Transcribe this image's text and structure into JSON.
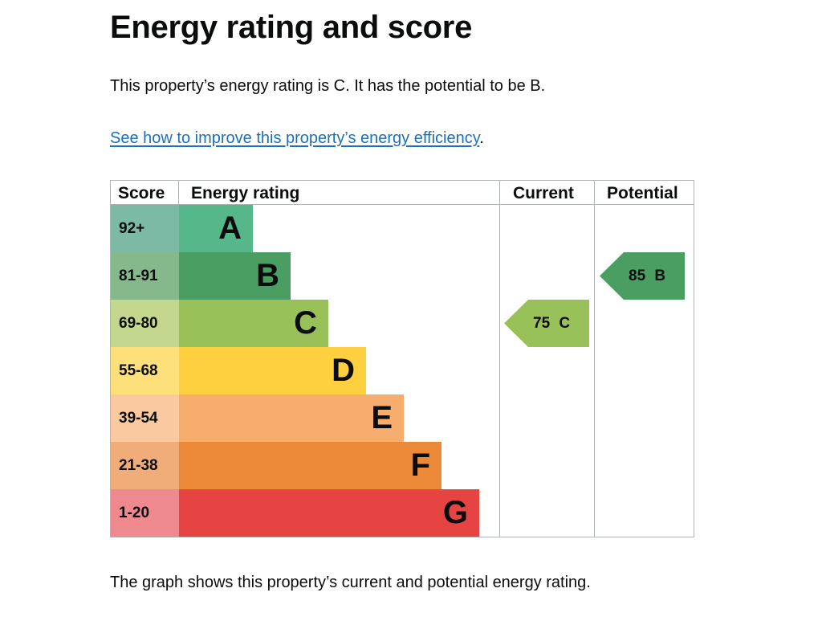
{
  "title": "Energy rating and score",
  "summary": "This property’s energy rating is C. It has the potential to be B.",
  "improve_link": "See how to improve this property’s energy efficiency",
  "improve_suffix": ".",
  "graph": {
    "headers": {
      "score": "Score",
      "rating": "Energy rating",
      "current": "Current",
      "potential": "Potential"
    },
    "bands": [
      {
        "score": "92+",
        "letter": "A",
        "bar_color": "#55b78a",
        "score_color": "#7cbaa6"
      },
      {
        "score": "81-91",
        "letter": "B",
        "bar_color": "#4a9e62",
        "score_color": "#85b98c"
      },
      {
        "score": "69-80",
        "letter": "C",
        "bar_color": "#98c159",
        "score_color": "#c4d78e"
      },
      {
        "score": "55-68",
        "letter": "D",
        "bar_color": "#fed03f",
        "score_color": "#fee07b"
      },
      {
        "score": "39-54",
        "letter": "E",
        "bar_color": "#f6ad6e",
        "score_color": "#f9c9a0"
      },
      {
        "score": "21-38",
        "letter": "F",
        "bar_color": "#ec8a3a",
        "score_color": "#f0ad7a"
      },
      {
        "score": "1-20",
        "letter": "G",
        "bar_color": "#e64343",
        "score_color": "#ee8a8f"
      }
    ],
    "current": {
      "label": "75 C",
      "score": 75,
      "band": "C",
      "color": "#98c159"
    },
    "potential": {
      "label": "85 B",
      "score": 85,
      "band": "B",
      "color": "#4a9e62"
    }
  },
  "footnote": "The graph shows this property’s current and potential energy rating."
}
